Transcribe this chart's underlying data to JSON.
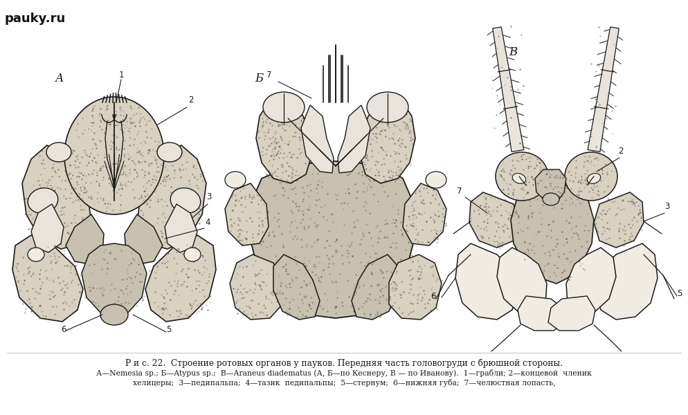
{
  "watermark": "pauky.ru",
  "bg": "#ffffff",
  "fill_body": "#d8d0c0",
  "fill_lobe": "#c8c0b0",
  "fill_light": "#e8e4dc",
  "fill_pale": "#f0ece4",
  "lc": "#1a1a1a",
  "tc": "#1a1a1a",
  "caption1": "Р и с. 22.  Строение ротовых органов у пауков. Передняя часть головогруди с брюшной стороны.",
  "caption2": "А—Nemesia sp.; Б—Atypus sp.;  В—Araneus diadematus (А, Б—по Кеснеру, В — по Иванову).  1—грабли; 2—концевой  членик",
  "caption3": "хелицеры;  3—педипальпа;  4—тазик  педипальпы;  5—стернум;  6—нижняя губа;  7—челюстная лопасть,"
}
